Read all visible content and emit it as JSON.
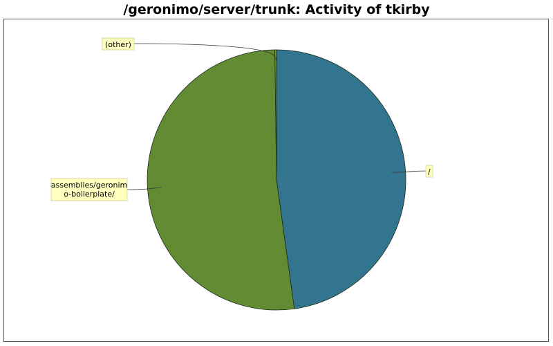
{
  "chart_data": {
    "type": "pie",
    "title": "/geronimo/server/trunk: Activity of tkirby",
    "slices": [
      {
        "label": "/",
        "value": 47.8,
        "color": "#33758E"
      },
      {
        "label": "assemblies/geronimo-boilerplate/",
        "label_lines": [
          "assemblies/geronim",
          "o-boilerplate/"
        ],
        "value": 52.0,
        "color": "#628B33"
      },
      {
        "label": "(other)",
        "value": 0.2,
        "color": "#7A9A3A"
      }
    ],
    "legend": "none"
  }
}
